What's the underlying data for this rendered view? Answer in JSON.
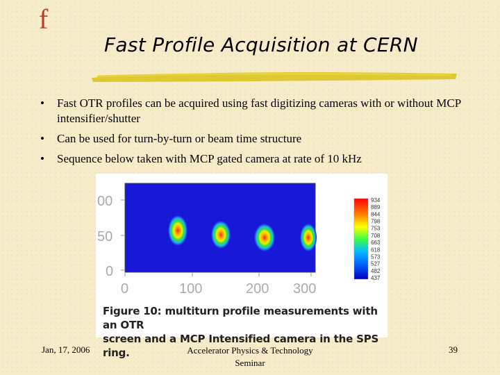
{
  "logo": "f",
  "title": "Fast Profile Acquisition at CERN",
  "bullets": [
    "Fast OTR profiles can be acquired using fast digitizing cameras with or without MCP intensifier/shutter",
    "Can be used for turn-by-turn or beam time structure",
    "Sequence below taken with MCP gated camera at rate of 10 kHz"
  ],
  "figure": {
    "y_ticks": [
      "00",
      "50",
      "0"
    ],
    "x_ticks": [
      "0",
      "100",
      "200",
      "300"
    ],
    "colorbar_labels": [
      "934",
      "889",
      "844",
      "798",
      "753",
      "708",
      "663",
      "618",
      "573",
      "527",
      "482",
      "437"
    ],
    "caption_line1": "Figure 10: multiturn profile measurements with an OTR",
    "caption_line2": "screen and a MCP Intensified camera in the SPS ring.",
    "accent": "#1818d8"
  },
  "footer": {
    "date": "Jan, 17, 2006",
    "center_line1": "Accelerator Physics & Technology",
    "center_line2": "Seminar",
    "page": "39"
  }
}
